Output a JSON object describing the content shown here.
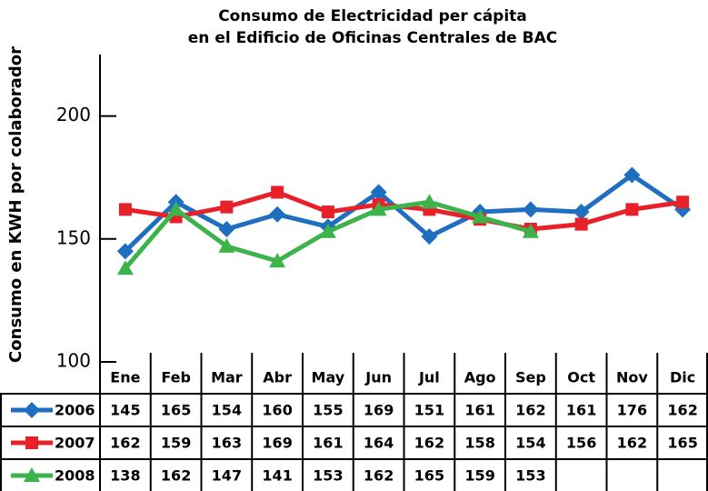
{
  "chart_data": {
    "type": "line",
    "title": [
      "Consumo de Electricidad per cápita",
      "en el Edificio de Oficinas Centrales de BAC"
    ],
    "y_label": "Consumo en KWH por colaborador",
    "categories": [
      "Ene",
      "Feb",
      "Mar",
      "Abr",
      "May",
      "Jun",
      "Jul",
      "Ago",
      "Sep",
      "Oct",
      "Nov",
      "Dic"
    ],
    "series": [
      {
        "name": "2006",
        "color": "#1f6fc0",
        "values": [
          145,
          165,
          154,
          160,
          155,
          169,
          151,
          161,
          162,
          161,
          176,
          162
        ]
      },
      {
        "name": "2007",
        "color": "#e8202a",
        "values": [
          162,
          159,
          163,
          169,
          161,
          164,
          162,
          158,
          154,
          156,
          162,
          165
        ]
      },
      {
        "name": "2008",
        "color": "#3db44b",
        "values": [
          138,
          162,
          147,
          141,
          153,
          162,
          165,
          159,
          153,
          null,
          null,
          null
        ]
      }
    ],
    "ylim": [
      100,
      225
    ],
    "yticks": [
      100,
      150,
      200
    ]
  }
}
